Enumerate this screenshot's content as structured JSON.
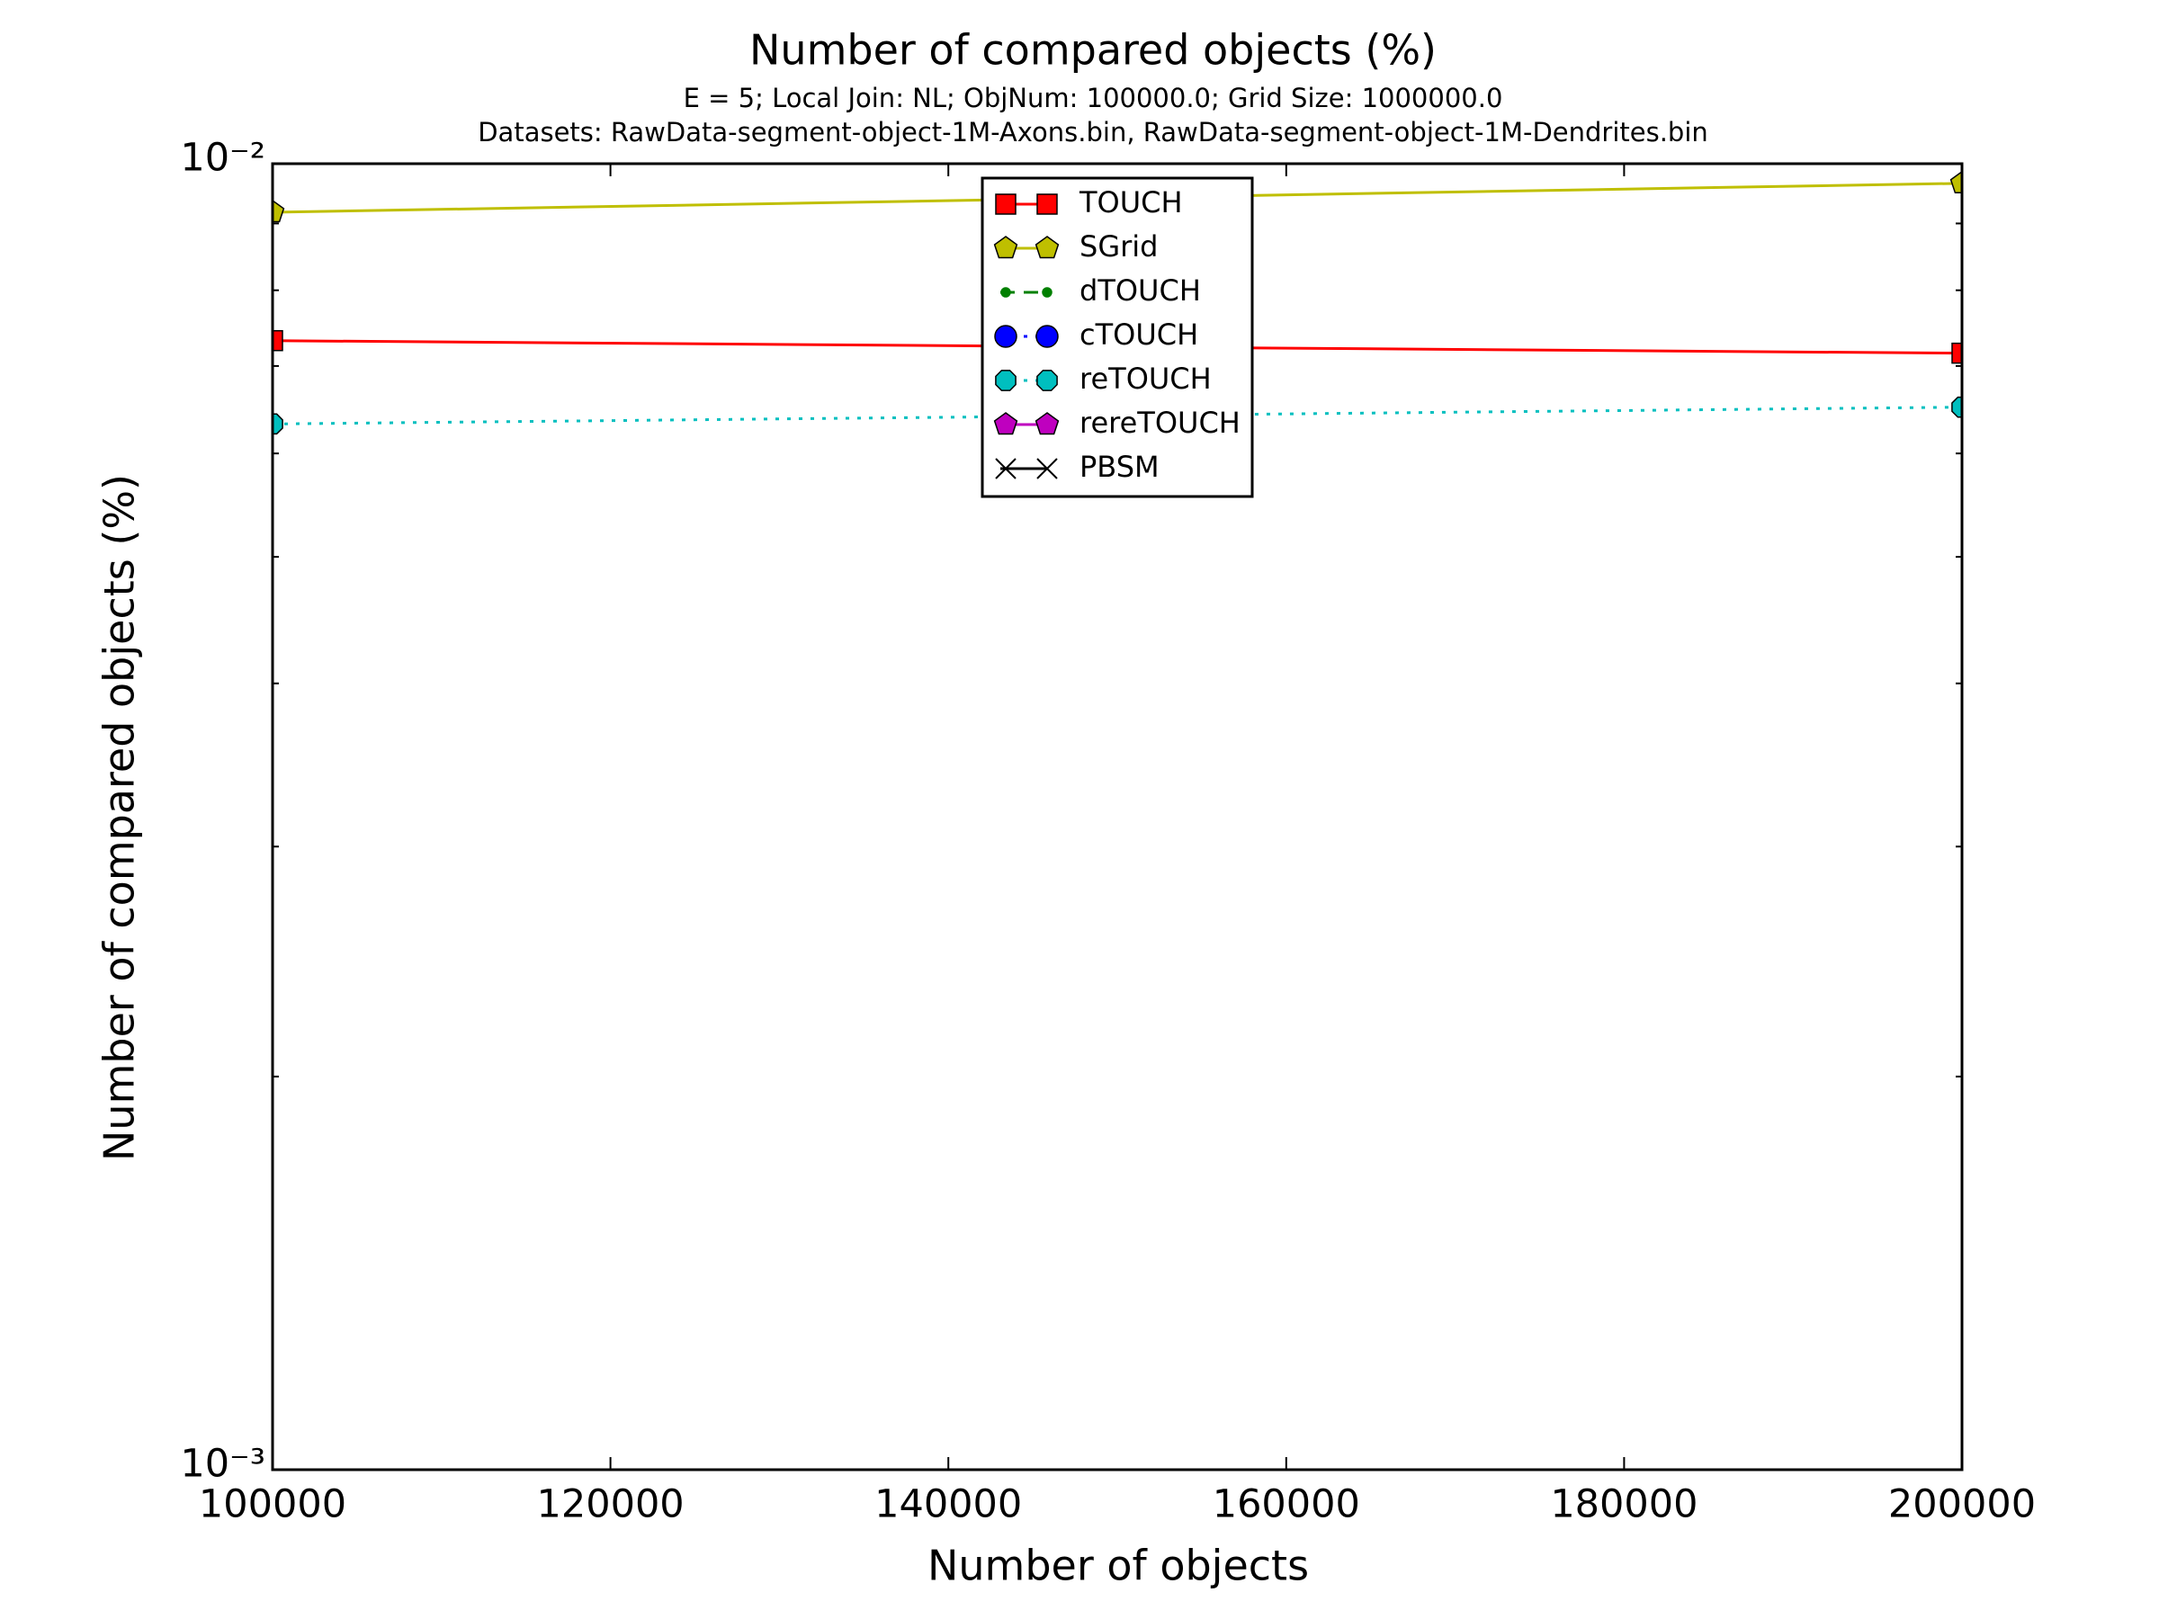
{
  "chart_data": {
    "type": "line",
    "title": "Number of compared objects (%)",
    "subtitle": [
      "E = 5; Local Join: NL; ObjNum: 100000.0; Grid Size: 1000000.0",
      "Datasets: RawData-segment-object-1M-Axons.bin, RawData-segment-object-1M-Dendrites.bin"
    ],
    "x_label": "Number of objects",
    "y_label": "Number of compared objects (%)",
    "x": [
      100000,
      200000
    ],
    "xlim": [
      100000,
      200000
    ],
    "xticks": [
      100000,
      120000,
      140000,
      160000,
      180000,
      200000
    ],
    "ylim": [
      0.001,
      0.01
    ],
    "yticks": [
      {
        "value": 0.001,
        "label": "10⁻³"
      },
      {
        "value": 0.01,
        "label": "10⁻²"
      }
    ],
    "yminorticks": [
      0.002,
      0.003,
      0.004,
      0.005,
      0.006,
      0.007,
      0.008,
      0.009
    ],
    "log_y": true,
    "legend": "upper center",
    "series": [
      {
        "name": "TOUCH",
        "color": "#ff0000",
        "marker": "square",
        "linestyle": "solid",
        "values": [
          0.00732,
          0.00716
        ]
      },
      {
        "name": "SGrid",
        "color": "#bfbf00",
        "marker": "pentagon",
        "linestyle": "solid",
        "values": [
          0.00918,
          0.00966
        ]
      },
      {
        "name": "dTOUCH",
        "color": "#008000",
        "marker": "dot",
        "linestyle": "dashed",
        "values": [
          null,
          null
        ]
      },
      {
        "name": "cTOUCH",
        "color": "#0000ff",
        "marker": "circle",
        "linestyle": "dotted",
        "values": [
          null,
          null
        ]
      },
      {
        "name": "reTOUCH",
        "color": "#00bfbf",
        "marker": "octagon",
        "linestyle": "dotted",
        "values": [
          0.00632,
          0.00651
        ]
      },
      {
        "name": "rereTOUCH",
        "color": "#bf00bf",
        "marker": "pentagon",
        "linestyle": "solid",
        "values": [
          null,
          null
        ]
      },
      {
        "name": "PBSM",
        "color": "#000000",
        "marker": "x",
        "linestyle": "solid",
        "values": [
          null,
          null
        ]
      }
    ]
  }
}
